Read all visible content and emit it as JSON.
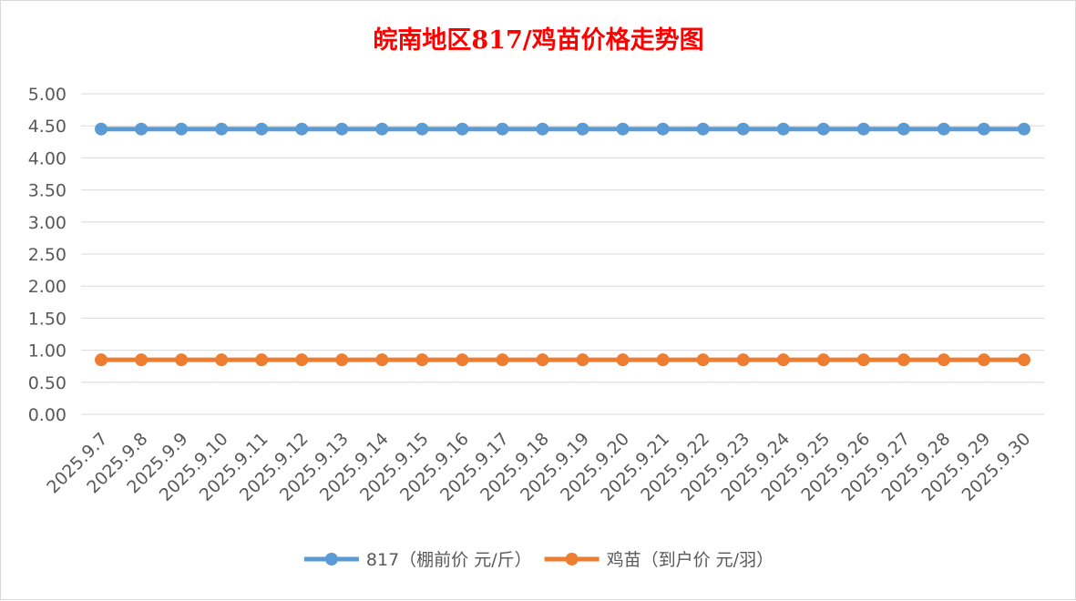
{
  "chart_data": {
    "type": "line",
    "title": "皖南地区817/鸡苗价格走势图",
    "xlabel": "",
    "ylabel": "",
    "ylim": [
      0,
      5
    ],
    "y_ticks": [
      "0.00",
      "0.50",
      "1.00",
      "1.50",
      "2.00",
      "2.50",
      "3.00",
      "3.50",
      "4.00",
      "4.50",
      "5.00"
    ],
    "grid": true,
    "legend_position": "bottom",
    "categories": [
      "2025.9.7",
      "2025.9.8",
      "2025.9.9",
      "2025.9.10",
      "2025.9.11",
      "2025.9.12",
      "2025.9.13",
      "2025.9.14",
      "2025.9.15",
      "2025.9.16",
      "2025.9.17",
      "2025.9.18",
      "2025.9.19",
      "2025.9.20",
      "2025.9.21",
      "2025.9.22",
      "2025.9.23",
      "2025.9.24",
      "2025.9.25",
      "2025.9.26",
      "2025.9.27",
      "2025.9.28",
      "2025.9.29",
      "2025.9.30"
    ],
    "series": [
      {
        "name": "817（棚前价 元/斤）",
        "color": "#5b9bd5",
        "values": [
          4.45,
          4.45,
          4.45,
          4.45,
          4.45,
          4.45,
          4.45,
          4.45,
          4.45,
          4.45,
          4.45,
          4.45,
          4.45,
          4.45,
          4.45,
          4.45,
          4.45,
          4.45,
          4.45,
          4.45,
          4.45,
          4.45,
          4.45,
          4.45
        ]
      },
      {
        "name": "鸡苗（到户价 元/羽）",
        "color": "#ed7d31",
        "values": [
          0.85,
          0.85,
          0.85,
          0.85,
          0.85,
          0.85,
          0.85,
          0.85,
          0.85,
          0.85,
          0.85,
          0.85,
          0.85,
          0.85,
          0.85,
          0.85,
          0.85,
          0.85,
          0.85,
          0.85,
          0.85,
          0.85,
          0.85,
          0.85
        ]
      }
    ]
  }
}
